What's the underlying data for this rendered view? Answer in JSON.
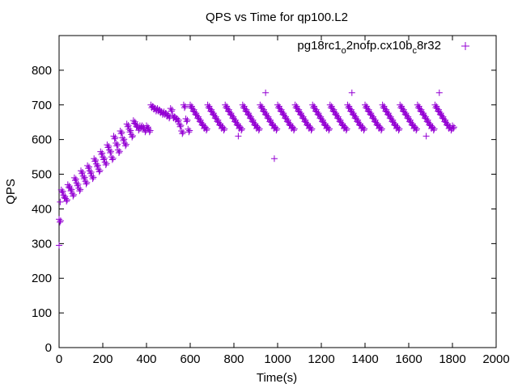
{
  "chart_data": {
    "type": "scatter",
    "title": "QPS vs Time for qp100.L2",
    "xlabel": "Time(s)",
    "ylabel": "QPS",
    "xlim": [
      0,
      2000
    ],
    "ylim": [
      0,
      900
    ],
    "xticks": [
      "0",
      "200",
      "400",
      "600",
      "800",
      "1000",
      "1200",
      "1400",
      "1600",
      "1800",
      "2000"
    ],
    "yticks": [
      "0",
      "100",
      "200",
      "300",
      "400",
      "500",
      "600",
      "700",
      "800"
    ],
    "legend_position": "top-right",
    "color": "#9400d3",
    "series": [
      {
        "name": "pg18rc1_o2nofp.cx10b_c8r32",
        "x_start": 0,
        "x_step": 10,
        "values": [
          370,
          455,
          440,
          430,
          470,
          460,
          445,
          490,
          475,
          460,
          510,
          495,
          480,
          525,
          510,
          495,
          545,
          530,
          515,
          565,
          550,
          535,
          585,
          570,
          550,
          610,
          590,
          570,
          625,
          605,
          590,
          645,
          630,
          615,
          655,
          645,
          635,
          640,
          640,
          630,
          640,
          630,
          700,
          695,
          690,
          690,
          685,
          680,
          680,
          675,
          670,
          690,
          670,
          665,
          660,
          645,
          625,
          700,
          660,
          630,
          700,
          690,
          680,
          670,
          660,
          650,
          640,
          635,
          700,
          690,
          680,
          670,
          660,
          650,
          640,
          635,
          700,
          690,
          680,
          670,
          660,
          650,
          640,
          635,
          700,
          690,
          680,
          670,
          660,
          650,
          640,
          635,
          700,
          690,
          680,
          670,
          660,
          650,
          640,
          635,
          700,
          690,
          680,
          670,
          660,
          650,
          640,
          635,
          700,
          690,
          680,
          670,
          660,
          650,
          640,
          635,
          700,
          690,
          680,
          670,
          660,
          650,
          640,
          635,
          700,
          690,
          680,
          670,
          660,
          650,
          640,
          635,
          700,
          690,
          680,
          670,
          660,
          650,
          640,
          635,
          700,
          690,
          680,
          670,
          660,
          650,
          640,
          635,
          700,
          690,
          680,
          670,
          660,
          650,
          640,
          635,
          700,
          690,
          680,
          670,
          660,
          650,
          640,
          635,
          700,
          690,
          680,
          670,
          660,
          650,
          640,
          635,
          700,
          690,
          680,
          670,
          660,
          650,
          640,
          635,
          640
        ],
        "extra_points": [
          [
            985,
            545
          ],
          [
            0,
            295
          ],
          [
            5,
            420
          ],
          [
            945,
            735
          ],
          [
            1340,
            735
          ],
          [
            1740,
            735
          ],
          [
            1680,
            610
          ],
          [
            820,
            610
          ]
        ]
      }
    ]
  }
}
